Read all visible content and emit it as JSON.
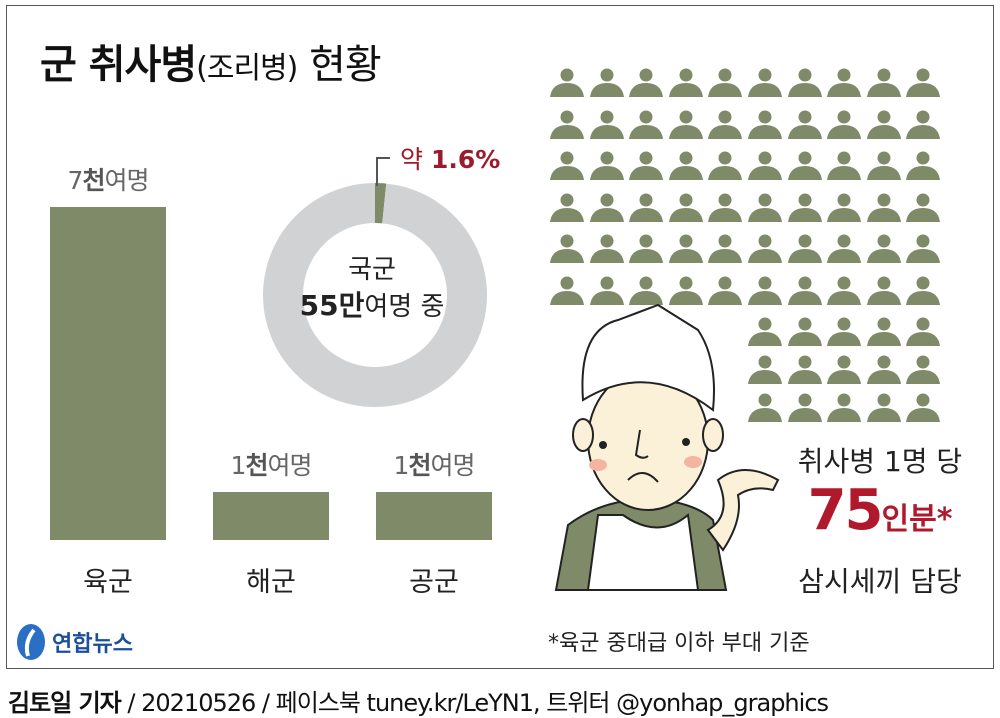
{
  "title": {
    "main": "군 취사병",
    "paren": "(조리병)",
    "rest": " 현황"
  },
  "chart_data": [
    {
      "type": "bar",
      "categories": [
        "육군",
        "해군",
        "공군"
      ],
      "values": [
        7000,
        1000,
        1000
      ],
      "value_labels": [
        {
          "num": "7",
          "unit": "천",
          "suffix": "여명"
        },
        {
          "num": "1",
          "unit": "천",
          "suffix": "여명"
        },
        {
          "num": "1",
          "unit": "천",
          "suffix": "여명"
        }
      ],
      "color": "#7f8a68",
      "grid": false
    },
    {
      "type": "pie",
      "donut": true,
      "slices": [
        {
          "value": 1.6
        },
        {
          "value": 98.4
        }
      ],
      "colors": [
        "#7f8a68",
        "#d0d2d3"
      ],
      "center_line1": "국군",
      "center_num": "55만",
      "center_rest": "여명 중",
      "annotation_prefix": "약 ",
      "annotation_value": "1.6%",
      "annotation_color": "#9a1b2b"
    }
  ],
  "pictogram": {
    "count": 75,
    "icon": "person-icon",
    "color": "#7f8a68"
  },
  "callout": {
    "line1": "취사병 1명 당",
    "big_number": "75",
    "big_unit": "인분*",
    "line3": "삼시세끼 담당"
  },
  "footnote": "*육군 중대급 이하 부대 기준",
  "logo": {
    "text": "연합뉴스",
    "color": "#1b4f9c"
  },
  "footer": {
    "author": "김토일 기자",
    "rest": " / 20210526 / 페이스북 tuney.kr/LeYN1, 트위터 @yonhap_graphics"
  }
}
